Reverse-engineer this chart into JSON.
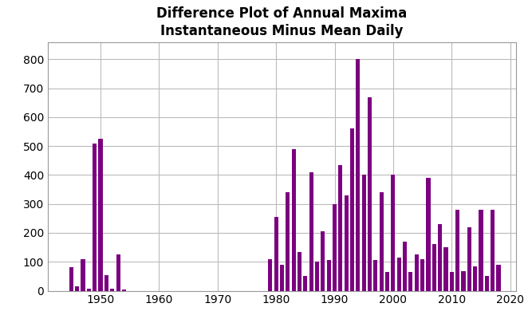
{
  "title_line1": "Difference Plot of Annual Maxima",
  "title_line2": "Instantaneous Minus Mean Daily",
  "bar_color": "#7B0080",
  "years": [
    1945,
    1946,
    1947,
    1948,
    1949,
    1950,
    1951,
    1952,
    1953,
    1954,
    1979,
    1980,
    1981,
    1982,
    1983,
    1984,
    1985,
    1986,
    1987,
    1988,
    1989,
    1990,
    1991,
    1992,
    1993,
    1994,
    1995,
    1996,
    1997,
    1998,
    1999,
    2000,
    2001,
    2002,
    2003,
    2004,
    2005,
    2006,
    2007,
    2008,
    2009,
    2010,
    2011,
    2012,
    2013,
    2014,
    2015,
    2016,
    2017,
    2018,
    2019
  ],
  "values": [
    80,
    15,
    110,
    8,
    510,
    525,
    55,
    8,
    125,
    3,
    110,
    255,
    90,
    340,
    490,
    135,
    50,
    410,
    100,
    205,
    105,
    300,
    435,
    330,
    560,
    800,
    400,
    670,
    105,
    340,
    65,
    400,
    115,
    170,
    65,
    125,
    110,
    390,
    160,
    230,
    150,
    65,
    280,
    68,
    220,
    83,
    280,
    52,
    280,
    90,
    0
  ],
  "xlim": [
    1941,
    2021
  ],
  "ylim": [
    0,
    860
  ],
  "yticks": [
    0,
    100,
    200,
    300,
    400,
    500,
    600,
    700,
    800
  ],
  "xticks": [
    1950,
    1960,
    1970,
    1980,
    1990,
    2000,
    2010,
    2020
  ],
  "bar_width": 0.7,
  "title_fontsize": 12,
  "tick_fontsize": 10,
  "background_color": "#ffffff",
  "grid_color": "#bbbbbb",
  "spine_color": "#999999"
}
